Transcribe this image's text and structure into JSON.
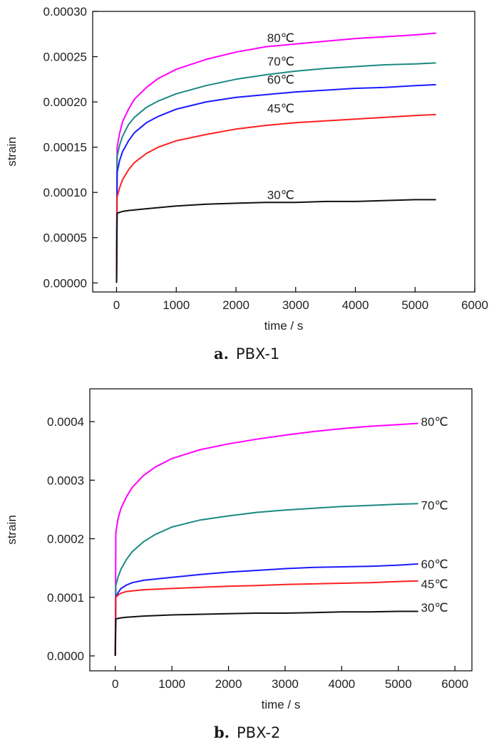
{
  "chart_data": [
    {
      "type": "line",
      "caption_letter": "a.",
      "caption_name": "PBX-1",
      "xlabel": "time / s",
      "ylabel": "strain",
      "xlim": [
        -400,
        6000
      ],
      "ylim": [
        -1e-05,
        0.0003
      ],
      "xticks": [
        0,
        1000,
        2000,
        3000,
        4000,
        5000,
        6000
      ],
      "xtick_labels": [
        "0",
        "1000",
        "2000",
        "3000",
        "4000",
        "5000",
        "6000"
      ],
      "yticks": [
        0,
        5e-05,
        0.0001,
        0.00015,
        0.0002,
        0.00025,
        0.0003
      ],
      "ytick_labels": [
        "0.00000",
        "0.00005",
        "0.00010",
        "0.00015",
        "0.00020",
        "0.00025",
        "0.00030"
      ],
      "grid": false,
      "series": [
        {
          "name": "80℃",
          "color": "#ff00ff",
          "label_x": 2750,
          "label_y": 0.000271,
          "x": [
            0,
            10,
            50,
            100,
            200,
            300,
            500,
            700,
            1000,
            1500,
            2000,
            2500,
            3000,
            3500,
            4000,
            4500,
            5000,
            5350
          ],
          "y": [
            0,
            0.00015,
            0.000165,
            0.000178,
            0.000192,
            0.000203,
            0.000216,
            0.000226,
            0.000236,
            0.000247,
            0.000255,
            0.000261,
            0.000264,
            0.000267,
            0.00027,
            0.000272,
            0.000274,
            0.000276
          ]
        },
        {
          "name": "70℃",
          "color": "#1a8a80",
          "label_x": 2750,
          "label_y": 0.000245,
          "x": [
            0,
            10,
            50,
            100,
            200,
            300,
            500,
            700,
            1000,
            1500,
            2000,
            2500,
            3000,
            3500,
            4000,
            4500,
            5000,
            5350
          ],
          "y": [
            0,
            0.00014,
            0.000152,
            0.000162,
            0.000175,
            0.000183,
            0.000194,
            0.000201,
            0.000209,
            0.000218,
            0.000225,
            0.00023,
            0.000234,
            0.000237,
            0.000239,
            0.000241,
            0.000242,
            0.000243
          ]
        },
        {
          "name": "60℃",
          "color": "#1a1aff",
          "label_x": 2750,
          "label_y": 0.000225,
          "x": [
            0,
            10,
            50,
            100,
            200,
            300,
            500,
            700,
            1000,
            1500,
            2000,
            2500,
            3000,
            3500,
            4000,
            4500,
            5000,
            5350
          ],
          "y": [
            0,
            0.000122,
            0.000135,
            0.000145,
            0.000157,
            0.000166,
            0.000177,
            0.000184,
            0.000192,
            0.0002,
            0.000205,
            0.000208,
            0.000211,
            0.000213,
            0.000215,
            0.000216,
            0.000218,
            0.000219
          ]
        },
        {
          "name": "45℃",
          "color": "#ff2020",
          "label_x": 2750,
          "label_y": 0.000193,
          "x": [
            0,
            10,
            50,
            100,
            200,
            300,
            500,
            700,
            1000,
            1500,
            2000,
            2500,
            3000,
            3500,
            4000,
            4500,
            5000,
            5350
          ],
          "y": [
            0,
            9.5e-05,
            0.000105,
            0.000114,
            0.000125,
            0.000133,
            0.000143,
            0.00015,
            0.000157,
            0.000164,
            0.00017,
            0.000174,
            0.000177,
            0.000179,
            0.000181,
            0.000183,
            0.000185,
            0.000186
          ]
        },
        {
          "name": "30℃",
          "color": "#111111",
          "label_x": 2750,
          "label_y": 9.75e-05,
          "x": [
            0,
            10,
            50,
            100,
            200,
            500,
            1000,
            1500,
            2000,
            2500,
            3000,
            3500,
            4000,
            4500,
            5000,
            5350
          ],
          "y": [
            0,
            7.7e-05,
            7.8e-05,
            7.9e-05,
            8e-05,
            8.2e-05,
            8.5e-05,
            8.7e-05,
            8.8e-05,
            8.9e-05,
            8.9e-05,
            9e-05,
            9e-05,
            9.1e-05,
            9.2e-05,
            9.2e-05
          ]
        }
      ]
    },
    {
      "type": "line",
      "caption_letter": "b.",
      "caption_name": "PBX-2",
      "xlabel": "time / s",
      "ylabel": "strain",
      "xlim": [
        -450,
        6300
      ],
      "ylim": [
        -2.55e-05,
        0.000456
      ],
      "xticks": [
        0,
        1000,
        2000,
        3000,
        4000,
        5000,
        6000
      ],
      "xtick_labels": [
        "0",
        "1000",
        "2000",
        "3000",
        "4000",
        "5000",
        "6000"
      ],
      "yticks": [
        0,
        0.0001,
        0.0002,
        0.0003,
        0.0004
      ],
      "ytick_labels": [
        "0.0000",
        "0.0001",
        "0.0002",
        "0.0003",
        "0.0004"
      ],
      "grid": false,
      "series": [
        {
          "name": "80℃",
          "color": "#ff00ff",
          "label_x": 5400,
          "label_y": 0.0004,
          "x": [
            0,
            10,
            50,
            100,
            200,
            300,
            500,
            700,
            1000,
            1500,
            2000,
            2500,
            3000,
            3500,
            4000,
            4500,
            5000,
            5350
          ],
          "y": [
            0,
            0.00021,
            0.000235,
            0.000252,
            0.000272,
            0.000288,
            0.000308,
            0.000322,
            0.000337,
            0.000352,
            0.000362,
            0.00037,
            0.000377,
            0.000383,
            0.000388,
            0.000392,
            0.000395,
            0.000397
          ]
        },
        {
          "name": "70℃",
          "color": "#1a8a80",
          "label_x": 5400,
          "label_y": 0.000257,
          "x": [
            0,
            10,
            50,
            100,
            200,
            300,
            500,
            700,
            1000,
            1500,
            2000,
            2500,
            3000,
            3500,
            4000,
            4500,
            5000,
            5350
          ],
          "y": [
            0,
            0.00012,
            0.000135,
            0.000148,
            0.000165,
            0.000178,
            0.000195,
            0.000207,
            0.00022,
            0.000232,
            0.000239,
            0.000245,
            0.000249,
            0.000252,
            0.000255,
            0.000257,
            0.000259,
            0.00026
          ]
        },
        {
          "name": "60℃",
          "color": "#1a1aff",
          "label_x": 5400,
          "label_y": 0.000157,
          "x": [
            0,
            10,
            50,
            100,
            200,
            300,
            500,
            1000,
            1500,
            2000,
            2500,
            3000,
            3500,
            4000,
            4500,
            5000,
            5350
          ],
          "y": [
            0,
            0.0001,
            0.000108,
            0.000115,
            0.000121,
            0.000125,
            0.000129,
            0.000134,
            0.000139,
            0.000143,
            0.000146,
            0.000149,
            0.000151,
            0.000152,
            0.000153,
            0.000155,
            0.000157
          ]
        },
        {
          "name": "45℃",
          "color": "#ff2020",
          "label_x": 5400,
          "label_y": 0.000123,
          "x": [
            0,
            10,
            50,
            100,
            200,
            500,
            1000,
            1500,
            2000,
            2500,
            3000,
            3500,
            4000,
            4500,
            5000,
            5350
          ],
          "y": [
            0,
            0.0001,
            0.000104,
            0.000107,
            0.00011,
            0.000113,
            0.000115,
            0.000117,
            0.000119,
            0.00012,
            0.000122,
            0.000123,
            0.000124,
            0.000125,
            0.000127,
            0.000128
          ]
        },
        {
          "name": "30℃",
          "color": "#111111",
          "label_x": 5400,
          "label_y": 8.3e-05,
          "x": [
            0,
            10,
            50,
            100,
            200,
            500,
            1000,
            1500,
            2000,
            2500,
            3000,
            3500,
            4000,
            4500,
            5000,
            5350
          ],
          "y": [
            0,
            6.3e-05,
            6.4e-05,
            6.5e-05,
            6.6e-05,
            6.8e-05,
            7e-05,
            7.1e-05,
            7.2e-05,
            7.3e-05,
            7.3e-05,
            7.4e-05,
            7.5e-05,
            7.5e-05,
            7.6e-05,
            7.6e-05
          ]
        }
      ]
    }
  ]
}
